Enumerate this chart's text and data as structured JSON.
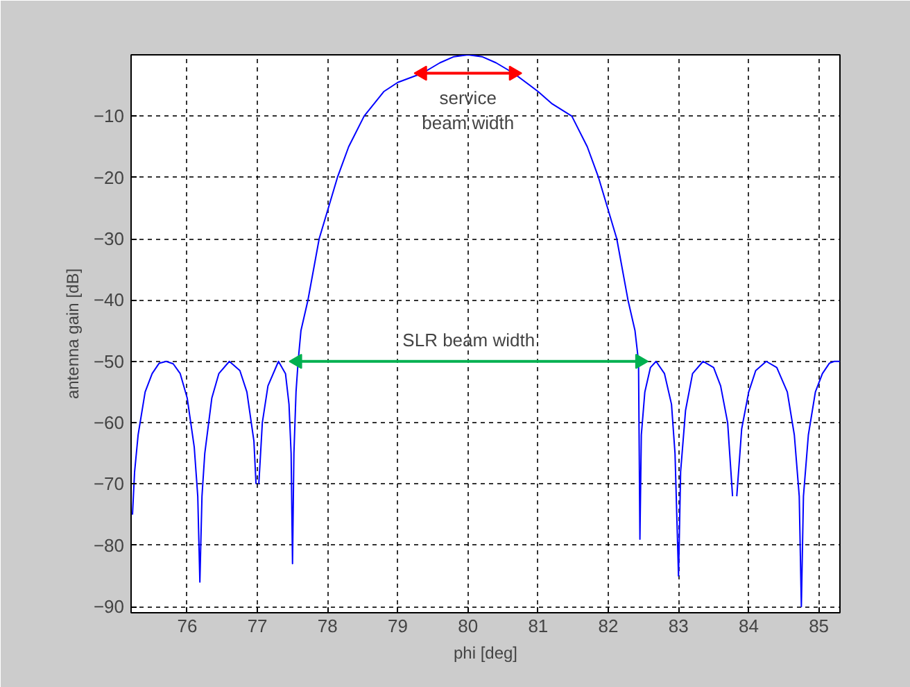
{
  "chart_data": {
    "type": "line",
    "xlabel": "phi [deg]",
    "ylabel": "antenna gain [dB]",
    "xlim": [
      75.2,
      85.3
    ],
    "ylim": [
      -91,
      0
    ],
    "xticks": [
      76,
      77,
      78,
      79,
      80,
      81,
      82,
      83,
      84,
      85
    ],
    "yticks": [
      -10,
      -20,
      -30,
      -40,
      -50,
      -60,
      -70,
      -80,
      -90
    ],
    "grid": true,
    "line_style": "solid",
    "series": [
      {
        "color": "#0000ff",
        "x": [
          75.22,
          75.25,
          75.3,
          75.4,
          75.5,
          75.6,
          75.7,
          75.8,
          75.9,
          76.0,
          76.1,
          76.15,
          76.18,
          76.21,
          76.25,
          76.35,
          76.45,
          76.6,
          76.75,
          76.85,
          76.95,
          76.98,
          77.0,
          77.02,
          77.07,
          77.15,
          77.3,
          77.4,
          77.45,
          77.48,
          77.5,
          77.52,
          77.55,
          77.58,
          77.62,
          77.72,
          77.88,
          78.14,
          78.3,
          78.52,
          78.8,
          79.0,
          79.35,
          79.6,
          79.8,
          80.0,
          80.2,
          80.4,
          80.65,
          81.0,
          81.2,
          81.48,
          81.7,
          81.86,
          82.12,
          82.28,
          82.38,
          82.43,
          82.45,
          82.47,
          82.52,
          82.6,
          82.68,
          82.8,
          82.9,
          82.95,
          83.0,
          83.03,
          83.1,
          83.2,
          83.35,
          83.5,
          83.6,
          83.7,
          83.77,
          83.8,
          83.83,
          83.9,
          84.0,
          84.1,
          84.25,
          84.4,
          84.55,
          84.65,
          84.72,
          84.75,
          84.78,
          84.85,
          84.95,
          85.05,
          85.15,
          85.22,
          85.3
        ],
        "values": [
          -75,
          -68,
          -62,
          -55,
          -52,
          -50.3,
          -50,
          -50.4,
          -52,
          -56,
          -64,
          -72,
          -86,
          -72,
          -65,
          -56,
          -52,
          -50,
          -51.5,
          -55,
          -63,
          -70,
          null,
          -70,
          -60,
          -54,
          -50,
          -52,
          -57,
          -65,
          -83,
          -65,
          -55,
          -50,
          -45,
          -40,
          -30,
          -20,
          -15,
          -10,
          -6,
          -4.5,
          -3,
          -1.3,
          -0.3,
          0,
          -0.3,
          -1.3,
          -3,
          -6,
          -8,
          -10,
          -15,
          -20,
          -30,
          -40,
          -45,
          -50,
          -79,
          -62,
          -55,
          -51,
          -50,
          -52,
          -57,
          -65,
          -85,
          -68,
          -58,
          -52,
          -50,
          -51,
          -54,
          -60,
          -72,
          null,
          -72,
          -61,
          -55,
          -51.5,
          -50,
          -51,
          -55,
          -62,
          -72,
          -90,
          -72,
          -62,
          -55,
          -52,
          -50.3,
          -50,
          -50
        ]
      },
      {
        "color": "#ff0000",
        "marker": "triangle",
        "x": [
          79.35,
          80.65
        ],
        "values": [
          -3,
          -3
        ]
      },
      {
        "color": "#00b050",
        "marker": "triangle",
        "x": [
          77.57,
          82.45
        ],
        "values": [
          -50,
          -50
        ]
      }
    ],
    "annotations": [
      "service\nbeam width",
      "SLR beam width"
    ]
  }
}
